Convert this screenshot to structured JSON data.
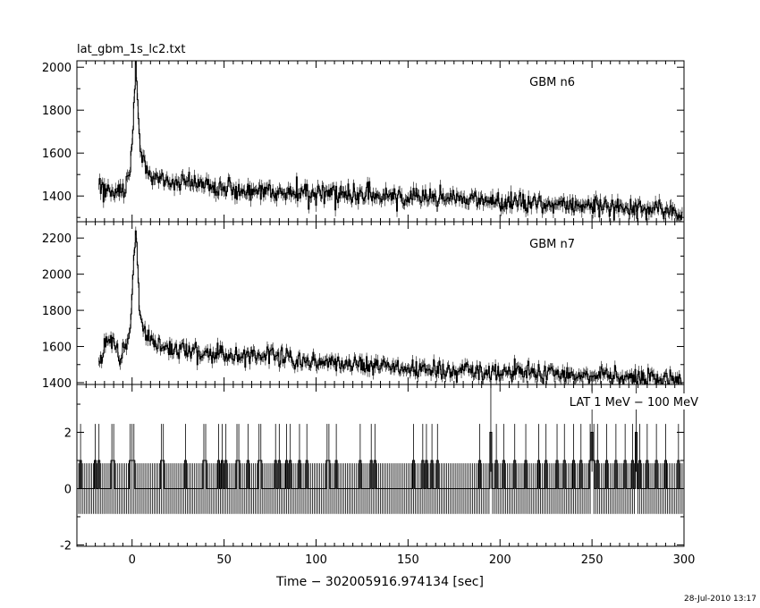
{
  "figure": {
    "file_title": "lat_gbm_1s_lc2.txt",
    "timestamp": "28-Jul-2010 13:17"
  },
  "chart_data": [
    {
      "type": "line",
      "panel": "GBM n6",
      "xlabel": "Time − 302005916.974134 [sec]",
      "ylabel": "",
      "xlim": [
        -30,
        300
      ],
      "ylim": [
        1280,
        2030
      ],
      "x_ticks": [
        0,
        50,
        100,
        150,
        200,
        250,
        300
      ],
      "y_ticks": [
        1400,
        1600,
        1800,
        2000
      ],
      "x_range": [
        -18,
        299
      ],
      "x_step": 0.5,
      "grid": false,
      "series": [
        {
          "trend_points": [
            [
              -18,
              1460
            ],
            [
              -15,
              1425
            ],
            [
              -8,
              1420
            ],
            [
              -4,
              1440
            ],
            [
              -2,
              1490
            ],
            [
              0,
              1620
            ],
            [
              1,
              1840
            ],
            [
              2,
              2020
            ],
            [
              3,
              1860
            ],
            [
              4,
              1680
            ],
            [
              6,
              1560
            ],
            [
              10,
              1490
            ],
            [
              20,
              1465
            ],
            [
              40,
              1445
            ],
            [
              60,
              1430
            ],
            [
              100,
              1410
            ],
            [
              150,
              1395
            ],
            [
              200,
              1375
            ],
            [
              250,
              1355
            ],
            [
              299,
              1320
            ]
          ],
          "noise_amplitude": 22
        }
      ]
    },
    {
      "type": "line",
      "panel": "GBM n7",
      "xlabel": "Time − 302005916.974134 [sec]",
      "ylabel": "",
      "xlim": [
        -30,
        300
      ],
      "ylim": [
        1390,
        2290
      ],
      "x_ticks": [
        0,
        50,
        100,
        150,
        200,
        250,
        300
      ],
      "y_ticks": [
        1400,
        1600,
        1800,
        2000,
        2200
      ],
      "x_range": [
        -18,
        299
      ],
      "x_step": 0.5,
      "grid": false,
      "series": [
        {
          "trend_points": [
            [
              -18,
              1490
            ],
            [
              -15,
              1600
            ],
            [
              -10,
              1620
            ],
            [
              -6,
              1560
            ],
            [
              -3,
              1620
            ],
            [
              -1,
              1720
            ],
            [
              0,
              1880
            ],
            [
              1,
              2100
            ],
            [
              2,
              2240
            ],
            [
              3,
              2080
            ],
            [
              4,
              1820
            ],
            [
              6,
              1700
            ],
            [
              10,
              1640
            ],
            [
              20,
              1590
            ],
            [
              40,
              1560
            ],
            [
              80,
              1540
            ],
            [
              100,
              1510
            ],
            [
              130,
              1500
            ],
            [
              150,
              1480
            ],
            [
              200,
              1460
            ],
            [
              250,
              1440
            ],
            [
              299,
              1410
            ]
          ],
          "noise_amplitude": 24
        }
      ]
    },
    {
      "type": "line",
      "panel": "LAT 1 MeV − 100 MeV",
      "xlabel": "Time − 302005916.974134 [sec]",
      "ylabel": "",
      "xlim": [
        -30,
        300
      ],
      "ylim": [
        -2.05,
        3.7
      ],
      "x_ticks": [
        0,
        50,
        100,
        150,
        200,
        250,
        300
      ],
      "y_ticks": [
        -2,
        0,
        2
      ],
      "x_range": [
        -29,
        299
      ],
      "x_step": 1,
      "grid": false,
      "series": [
        {
          "baseline": 0,
          "error_half_width": 0.9,
          "errors_for_hits": 1.35,
          "hits_1": [
            -28,
            -20,
            -18,
            -11,
            -10,
            -1,
            0,
            1,
            16,
            17,
            29,
            39,
            40,
            47,
            49,
            51,
            57,
            58,
            63,
            69,
            70,
            78,
            80,
            84,
            86,
            91,
            95,
            106,
            107,
            111,
            124,
            130,
            132,
            153,
            158,
            160,
            163,
            166,
            189,
            198,
            202,
            208,
            214,
            221,
            225,
            231,
            235,
            240,
            244,
            249,
            251,
            253,
            258,
            263,
            268,
            272,
            276,
            280,
            285,
            290,
            297
          ],
          "hits_2": [
            195,
            250,
            274
          ]
        }
      ]
    }
  ]
}
